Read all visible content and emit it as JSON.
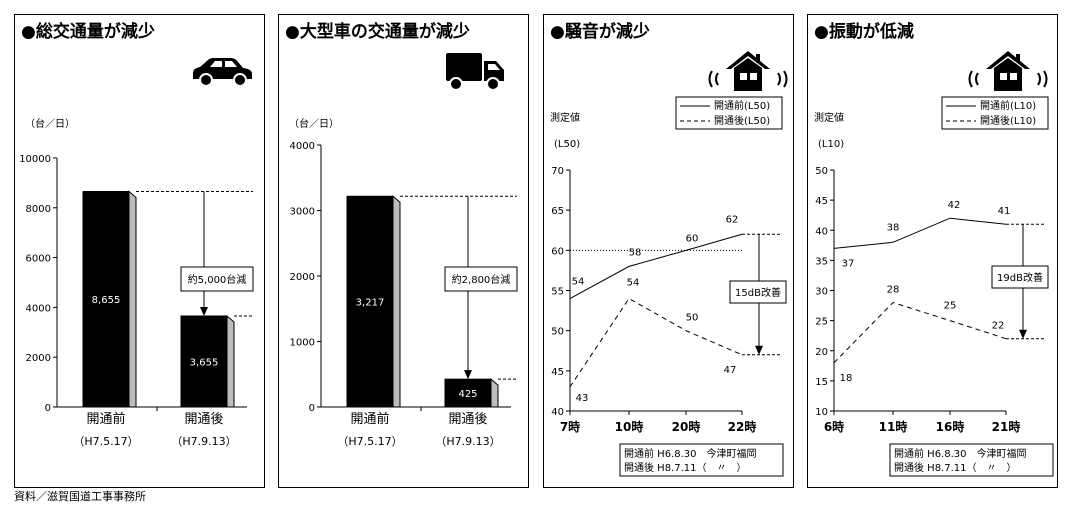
{
  "footer": "資料／滋賀国道工事事務所",
  "chart_data": [
    {
      "type": "bar",
      "title": "●総交通量が減少",
      "ylabel": "（台／日）",
      "ylim": [
        0,
        10000
      ],
      "yticks": [
        "0",
        "2000",
        "4000",
        "6000",
        "8000",
        "10000"
      ],
      "categories": [
        "開通前",
        "開通後"
      ],
      "category_dates": [
        "（H7.5.17）",
        "（H7.9.13）"
      ],
      "values": [
        8655,
        3655
      ],
      "value_labels": [
        "8,655",
        "3,655"
      ],
      "annotation": "約5,000台減"
    },
    {
      "type": "bar",
      "title": "●大型車の交通量が減少",
      "ylabel": "（台／日）",
      "ylim": [
        0,
        4000
      ],
      "yticks": [
        "0",
        "1000",
        "2000",
        "3000",
        "4000"
      ],
      "categories": [
        "開通前",
        "開通後"
      ],
      "category_dates": [
        "（H7.5.17）",
        "（H7.9.13）"
      ],
      "values": [
        3217,
        425
      ],
      "value_labels": [
        "3,217",
        "425"
      ],
      "annotation": "約2,800台減"
    },
    {
      "type": "line",
      "title": "●騒音が減少",
      "ylabel": "測定値",
      "yunit": "(L50)",
      "ylim": [
        40,
        70
      ],
      "yticks": [
        "40",
        "45",
        "50",
        "55",
        "60",
        "65",
        "70"
      ],
      "categories": [
        "7時",
        "10時",
        "20時",
        "22時"
      ],
      "series": [
        {
          "name": "開通前(L50)",
          "values": [
            54,
            58,
            60,
            62
          ],
          "style": "solid"
        },
        {
          "name": "開通後(L50)",
          "values": [
            43,
            54,
            50,
            47
          ],
          "style": "dashed"
        }
      ],
      "reference_line": 60,
      "annotation": "15dB改善",
      "note": [
        "開通前 H6.8.30　今津町福岡",
        "開通後 H8.7.11（　〃　）"
      ]
    },
    {
      "type": "line",
      "title": "●振動が低減",
      "ylabel": "測定値",
      "yunit": "(L10)",
      "ylim": [
        10,
        50
      ],
      "yticks": [
        "10",
        "15",
        "20",
        "25",
        "30",
        "35",
        "40",
        "45",
        "50"
      ],
      "categories": [
        "6時",
        "11時",
        "16時",
        "21時"
      ],
      "series": [
        {
          "name": "開通前(L10)",
          "values": [
            37,
            38,
            42,
            41
          ],
          "style": "solid"
        },
        {
          "name": "開通後(L10)",
          "values": [
            18,
            28,
            25,
            22
          ],
          "style": "dashed"
        }
      ],
      "annotation": "19dB改善",
      "note": [
        "開通前 H6.8.30　今津町福岡",
        "開通後 H8.7.11（　〃　）"
      ]
    }
  ]
}
